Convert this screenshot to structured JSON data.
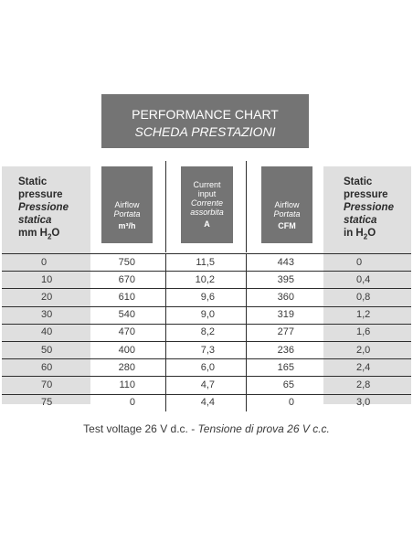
{
  "chart_data": {
    "type": "table",
    "title_line1": "PERFORMANCE CHART",
    "title_line2": "SCHEDA PRESTAZIONI",
    "headers": {
      "static_mm": {
        "line1": "Static",
        "line2": "pressure",
        "line3": "Pressione",
        "line4": "statica",
        "unit": "mm H",
        "sub": "2",
        "unit_end": "O"
      },
      "airflow_m3h": {
        "line1": "Airflow",
        "line2": "Portata",
        "unit": "m³/h"
      },
      "current": {
        "line1": "Current",
        "line2": "input",
        "line3": "Corrente",
        "line4": "assorbita",
        "unit": "A"
      },
      "airflow_cfm": {
        "line1": "Airflow",
        "line2": "Portata",
        "unit": "CFM"
      },
      "static_in": {
        "line1": "Static",
        "line2": "pressure",
        "line3": "Pressione",
        "line4": "statica",
        "unit": "in H",
        "sub": "2",
        "unit_end": "O"
      }
    },
    "rows": [
      [
        "0",
        "750",
        "11,5",
        "443",
        "0"
      ],
      [
        "10",
        "670",
        "10,2",
        "395",
        "0,4"
      ],
      [
        "20",
        "610",
        "9,6",
        "360",
        "0,8"
      ],
      [
        "30",
        "540",
        "9,0",
        "319",
        "1,2"
      ],
      [
        "40",
        "470",
        "8,2",
        "277",
        "1,6"
      ],
      [
        "50",
        "400",
        "7,3",
        "236",
        "2,0"
      ],
      [
        "60",
        "280",
        "6,0",
        "165",
        "2,4"
      ],
      [
        "70",
        "110",
        "4,7",
        "65",
        "2,8"
      ],
      [
        "75",
        "0",
        "4,4",
        "0",
        "3,0"
      ]
    ],
    "footer_regular": "Test voltage 26 V d.c. - ",
    "footer_italic": "Tensione di prova 26 V c.c."
  },
  "colors": {
    "dark_header": "#747474",
    "light_column": "#dfdfdf",
    "rule": "#2e2e2e",
    "text": "#3a3a3a"
  }
}
